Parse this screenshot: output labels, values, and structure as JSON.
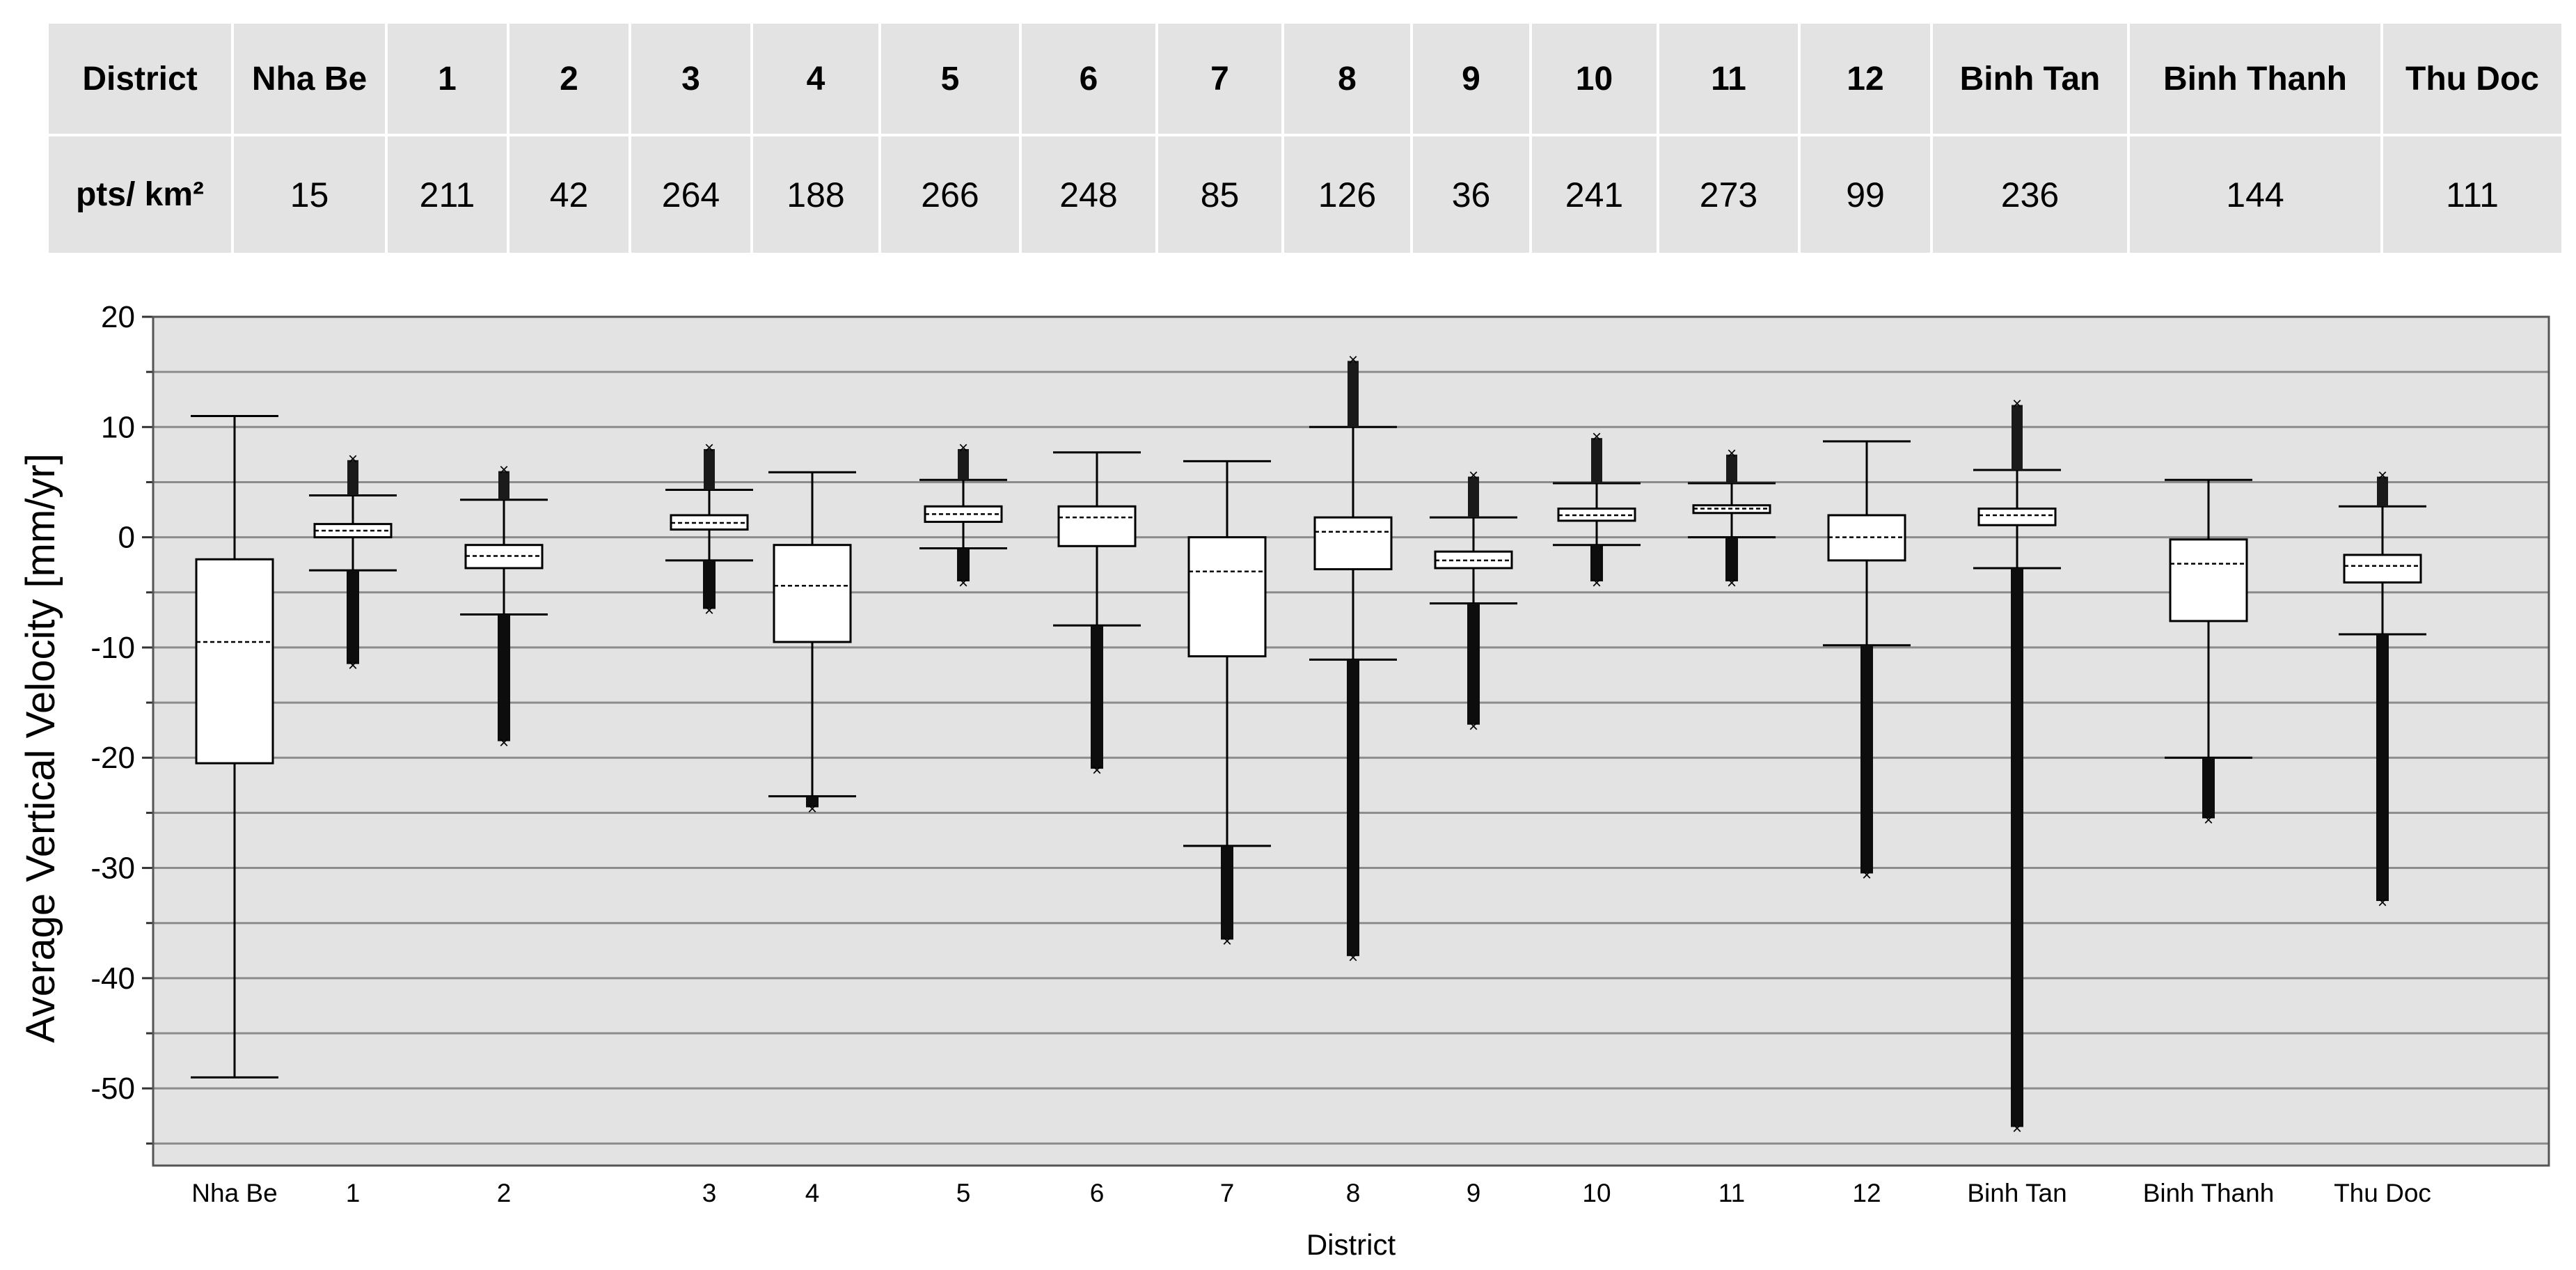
{
  "table": {
    "header_label": "District",
    "row_label": "pts/ km²",
    "columns": [
      "Nha Be",
      "1",
      "2",
      "3",
      "4",
      "5",
      "6",
      "7",
      "8",
      "9",
      "10",
      "11",
      "12",
      "Binh Tan",
      "Binh Thanh",
      "Thu Doc"
    ],
    "values": [
      "15",
      "211",
      "42",
      "264",
      "188",
      "266",
      "248",
      "85",
      "126",
      "36",
      "241",
      "273",
      "99",
      "236",
      "144",
      "111"
    ]
  },
  "chart_data": {
    "type": "boxplot",
    "xlabel": "District",
    "ylabel": "Average Vertical Velocity [mm/yr]",
    "ylim": [
      -57,
      20
    ],
    "yticks": [
      20,
      10,
      0,
      -10,
      -20,
      -30,
      -40,
      -50
    ],
    "minor_ticks": [
      15,
      5,
      -5,
      -15,
      -25,
      -35,
      -45,
      -55
    ],
    "grid": true,
    "categories": [
      "Nha Be",
      "1",
      "2",
      "3",
      "4",
      "5",
      "6",
      "7",
      "8",
      "9",
      "10",
      "11",
      "12",
      "Binh Tan",
      "Binh Thanh",
      "Thu Doc"
    ],
    "boxes": [
      {
        "q1": -20.5,
        "median": -9.5,
        "q3": -2.0,
        "whisker_low": -49.0,
        "whisker_high": 11.0,
        "outlier_low": null,
        "outlier_high": null
      },
      {
        "q1": 0.0,
        "median": 0.6,
        "q3": 1.2,
        "whisker_low": -3.0,
        "whisker_high": 3.8,
        "outlier_low": -11.5,
        "outlier_high": 7.0
      },
      {
        "q1": -2.8,
        "median": -1.7,
        "q3": -0.7,
        "whisker_low": -7.0,
        "whisker_high": 3.4,
        "outlier_low": -18.5,
        "outlier_high": 6.0
      },
      {
        "q1": 0.7,
        "median": 1.3,
        "q3": 2.0,
        "whisker_low": -2.1,
        "whisker_high": 4.3,
        "outlier_low": -6.5,
        "outlier_high": 8.0
      },
      {
        "q1": -9.5,
        "median": -4.4,
        "q3": -0.7,
        "whisker_low": -23.5,
        "whisker_high": 5.9,
        "outlier_low": -24.5,
        "outlier_high": null
      },
      {
        "q1": 1.4,
        "median": 2.1,
        "q3": 2.8,
        "whisker_low": -1.0,
        "whisker_high": 5.2,
        "outlier_low": -4.0,
        "outlier_high": 8.0
      },
      {
        "q1": -0.8,
        "median": 1.8,
        "q3": 2.8,
        "whisker_low": -8.0,
        "whisker_high": 7.7,
        "outlier_low": -21.0,
        "outlier_high": null
      },
      {
        "q1": -10.8,
        "median": -3.1,
        "q3": 0.0,
        "whisker_low": -28.0,
        "whisker_high": 6.9,
        "outlier_low": -36.5,
        "outlier_high": null
      },
      {
        "q1": -2.9,
        "median": 0.5,
        "q3": 1.8,
        "whisker_low": -11.1,
        "whisker_high": 10.0,
        "outlier_low": -38.0,
        "outlier_high": 16.0
      },
      {
        "q1": -2.8,
        "median": -2.1,
        "q3": -1.3,
        "whisker_low": -6.0,
        "whisker_high": 1.8,
        "outlier_low": -17.0,
        "outlier_high": 5.5
      },
      {
        "q1": 1.5,
        "median": 2.0,
        "q3": 2.6,
        "whisker_low": -0.7,
        "whisker_high": 4.9,
        "outlier_low": -4.0,
        "outlier_high": 9.0
      },
      {
        "q1": 2.2,
        "median": 2.6,
        "q3": 2.9,
        "whisker_low": 0.0,
        "whisker_high": 4.9,
        "outlier_low": -4.0,
        "outlier_high": 7.5
      },
      {
        "q1": -2.1,
        "median": 0.0,
        "q3": 2.0,
        "whisker_low": -9.8,
        "whisker_high": 8.7,
        "outlier_low": -30.5,
        "outlier_high": null
      },
      {
        "q1": 1.1,
        "median": 2.0,
        "q3": 2.6,
        "whisker_low": -2.8,
        "whisker_high": 6.1,
        "outlier_low": -53.5,
        "outlier_high": 12.0
      },
      {
        "q1": -7.6,
        "median": -2.4,
        "q3": -0.2,
        "whisker_low": -20.0,
        "whisker_high": 5.2,
        "outlier_low": -25.5,
        "outlier_high": null
      },
      {
        "q1": -4.1,
        "median": -2.6,
        "q3": -1.6,
        "whisker_low": -8.8,
        "whisker_high": 2.8,
        "outlier_low": -33.0,
        "outlier_high": 5.5
      }
    ]
  }
}
